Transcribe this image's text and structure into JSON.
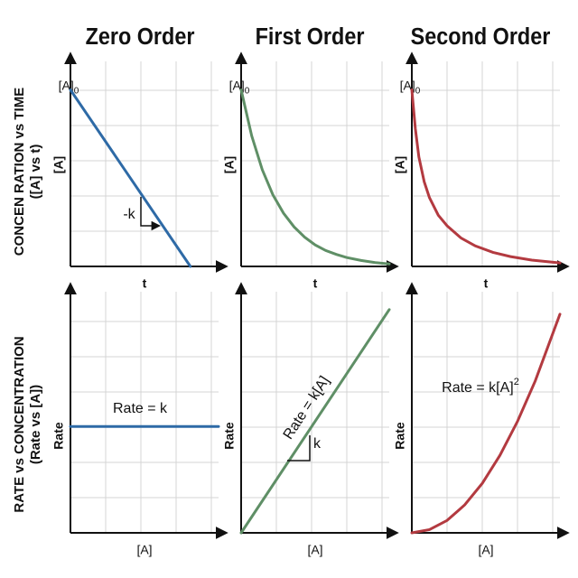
{
  "columns": [
    "Zero Order",
    "First Order",
    "Second Order"
  ],
  "rows": [
    [
      "CONCEN RATION vs TIME",
      "([A] vs t)"
    ],
    [
      "RATE vs CONCENTRATION",
      "(Rate vs [A])"
    ]
  ],
  "chart_data": [
    {
      "type": "line",
      "y_label": "[A]",
      "x_label": "t",
      "origin_label": {
        "text": "[A]",
        "subscript": "0"
      },
      "annotations": [
        {
          "text": "-k"
        }
      ],
      "color": "#2e6aa6",
      "grid": true,
      "xlim": [
        0,
        4.2
      ],
      "ylim": [
        0,
        5.5
      ],
      "x": [
        0,
        3.4
      ],
      "values": [
        5,
        0
      ]
    },
    {
      "type": "line",
      "y_label": "[A]",
      "x_label": "t",
      "origin_label": {
        "text": "[A]",
        "subscript": "0"
      },
      "annotations": [],
      "color": "#5f8f66",
      "grid": true,
      "xlim": [
        0,
        4.2
      ],
      "ylim": [
        0,
        5.5
      ],
      "x": [
        0,
        0.3,
        0.6,
        0.9,
        1.2,
        1.5,
        1.8,
        2.1,
        2.4,
        2.7,
        3,
        3.4,
        3.8,
        4.2
      ],
      "values": [
        5,
        3.7,
        2.74,
        2.03,
        1.51,
        1.12,
        0.83,
        0.61,
        0.45,
        0.34,
        0.25,
        0.17,
        0.11,
        0.07
      ]
    },
    {
      "type": "line",
      "y_label": "[A]",
      "x_label": "t",
      "origin_label": {
        "text": "[A]",
        "subscript": "0"
      },
      "annotations": [],
      "color": "#b33a40",
      "grid": true,
      "xlim": [
        0,
        4.2
      ],
      "ylim": [
        0,
        5.5
      ],
      "x": [
        0,
        0.1,
        0.2,
        0.35,
        0.5,
        0.75,
        1,
        1.4,
        1.8,
        2.3,
        2.8,
        3.4,
        4.2
      ],
      "values": [
        5,
        3.9,
        3.1,
        2.4,
        1.95,
        1.45,
        1.15,
        0.8,
        0.58,
        0.4,
        0.28,
        0.18,
        0.1
      ]
    },
    {
      "type": "line",
      "y_label": "Rate",
      "x_label": "[A]",
      "annotations": [
        {
          "text": "Rate = k"
        }
      ],
      "color": "#2e6aa6",
      "grid": true,
      "xlim": [
        0,
        4.2
      ],
      "ylim": [
        0,
        6.5
      ],
      "x": [
        0,
        4.2
      ],
      "values": [
        3,
        3
      ]
    },
    {
      "type": "line",
      "y_label": "Rate",
      "x_label": "[A]",
      "annotations": [
        {
          "text": "Rate = k[A]"
        },
        {
          "text": "k"
        }
      ],
      "color": "#5f8f66",
      "grid": true,
      "xlim": [
        0,
        4.2
      ],
      "ylim": [
        0,
        6.5
      ],
      "x": [
        0,
        4.2
      ],
      "values": [
        0,
        6.3
      ]
    },
    {
      "type": "line",
      "y_label": "Rate",
      "x_label": "[A]",
      "annotations": [
        {
          "text": "Rate = k[A]",
          "superscript": "2"
        }
      ],
      "color": "#b33a40",
      "grid": true,
      "xlim": [
        0,
        4.2
      ],
      "ylim": [
        0,
        6.5
      ],
      "x": [
        0,
        0.5,
        1,
        1.5,
        2,
        2.5,
        3,
        3.5,
        4.2
      ],
      "values": [
        0,
        0.09,
        0.35,
        0.79,
        1.4,
        2.19,
        3.15,
        4.29,
        6.17
      ]
    }
  ]
}
